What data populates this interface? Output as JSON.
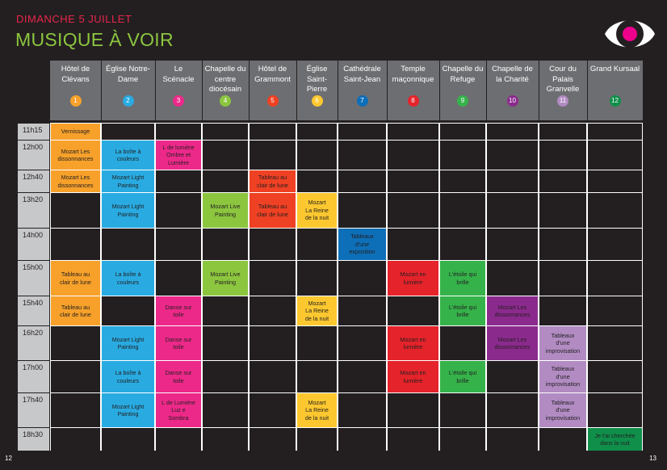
{
  "header": {
    "date": "DIMANCHE 5 JUILLET",
    "title": "MUSIQUE À VOIR"
  },
  "page_numbers": {
    "left": "12",
    "right": "13"
  },
  "colors": {
    "background": "#231f20",
    "date": "#e8254b",
    "title": "#8cc63f",
    "header_bg": "#6d6e71",
    "time_bg": "#c7c8ca",
    "eye_pupil": "#ec008c"
  },
  "logo": {
    "icon": "eye-icon"
  },
  "venues": [
    {
      "label": "Hôtel de Clévans",
      "number": "1",
      "color": "#f7a12b"
    },
    {
      "label": "Église Notre-Dame",
      "number": "2",
      "color": "#29abe2"
    },
    {
      "label": "Le Scénacle",
      "number": "3",
      "color": "#ec2989"
    },
    {
      "label": "Chapelle du centre diocésain",
      "number": "4",
      "color": "#8cc63f"
    },
    {
      "label": "Hôtel de Grammont",
      "number": "5",
      "color": "#ef4123"
    },
    {
      "label": "Église Saint-Pierre",
      "number": "6",
      "color": "#fdc82f"
    },
    {
      "label": "Cathédrale Saint-Jean",
      "number": "7",
      "color": "#0d6fb8"
    },
    {
      "label": "Temple maçonnique",
      "number": "8",
      "color": "#e5232a"
    },
    {
      "label": "Chapelle du Refuge",
      "number": "9",
      "color": "#35b34a"
    },
    {
      "label": "Chapelle de la Charité",
      "number": "10",
      "color": "#8b2a8d"
    },
    {
      "label": "Cour du Palais Granvelle",
      "number": "11",
      "color": "#b18bc2"
    },
    {
      "label": "Grand Kursaal",
      "number": "12",
      "color": "#0f8f4a"
    }
  ],
  "times": [
    "11h15",
    "12h00",
    "12h40",
    "13h20",
    "14h00",
    "15h00",
    "15h40",
    "16h20",
    "17h00",
    "17h40",
    "18h30"
  ],
  "events": [
    {
      "row": 0,
      "col": 0,
      "lines": [
        "Vernissage"
      ]
    },
    {
      "row": 1,
      "col": 0,
      "lines": [
        "Mozart Les",
        "dissonnances"
      ]
    },
    {
      "row": 1,
      "col": 1,
      "lines": [
        "La boîte à",
        "couleurs"
      ]
    },
    {
      "row": 1,
      "col": 2,
      "lines": [
        "L de lumière",
        "Ombre et",
        "Lumière"
      ]
    },
    {
      "row": 2,
      "col": 0,
      "lines": [
        "Mozart Les",
        "dissonnances"
      ]
    },
    {
      "row": 2,
      "col": 1,
      "lines": [
        "Mozart Light",
        "Painting"
      ]
    },
    {
      "row": 2,
      "col": 4,
      "lines": [
        "Tableau au",
        "clair de lune"
      ]
    },
    {
      "row": 3,
      "col": 1,
      "lines": [
        "Mozart Light",
        "Painting"
      ]
    },
    {
      "row": 3,
      "col": 3,
      "lines": [
        "Mozart Live",
        "Painting"
      ]
    },
    {
      "row": 3,
      "col": 4,
      "lines": [
        "Tableau au",
        "clair de lune"
      ]
    },
    {
      "row": 3,
      "col": 5,
      "lines": [
        "Mozart",
        "La Reine",
        "de la nuit"
      ]
    },
    {
      "row": 4,
      "col": 6,
      "lines": [
        "Tableaux",
        "d'une",
        "exposition"
      ]
    },
    {
      "row": 5,
      "col": 0,
      "lines": [
        "Tableau au",
        "clair de lune"
      ]
    },
    {
      "row": 5,
      "col": 1,
      "lines": [
        "La boîte à",
        "couleurs"
      ]
    },
    {
      "row": 5,
      "col": 3,
      "lines": [
        "Mozart Live",
        "Painting"
      ]
    },
    {
      "row": 5,
      "col": 7,
      "lines": [
        "Mozart en",
        "lumière"
      ]
    },
    {
      "row": 5,
      "col": 8,
      "lines": [
        "L'étoile qui",
        "brille"
      ]
    },
    {
      "row": 6,
      "col": 0,
      "lines": [
        "Tableau au",
        "clair de lune"
      ]
    },
    {
      "row": 6,
      "col": 2,
      "lines": [
        "Danse sur",
        "toile"
      ]
    },
    {
      "row": 6,
      "col": 5,
      "lines": [
        "Mozart",
        "La Reine",
        "de la nuit"
      ]
    },
    {
      "row": 6,
      "col": 8,
      "lines": [
        "L'étoile qui",
        "brille"
      ]
    },
    {
      "row": 6,
      "col": 9,
      "lines": [
        "Mozart Les",
        "dissonnances"
      ]
    },
    {
      "row": 7,
      "col": 1,
      "lines": [
        "Mozart Light",
        "Painting"
      ]
    },
    {
      "row": 7,
      "col": 2,
      "lines": [
        "Danse sur",
        "toile"
      ]
    },
    {
      "row": 7,
      "col": 7,
      "lines": [
        "Mozart en",
        "lumière"
      ]
    },
    {
      "row": 7,
      "col": 9,
      "lines": [
        "Mozart Les",
        "dissonnances"
      ]
    },
    {
      "row": 7,
      "col": 10,
      "lines": [
        "Tableaux",
        "d'une",
        "improvisation"
      ]
    },
    {
      "row": 8,
      "col": 1,
      "lines": [
        "La boîte à",
        "couleurs"
      ]
    },
    {
      "row": 8,
      "col": 2,
      "lines": [
        "Danse sur",
        "toile"
      ]
    },
    {
      "row": 8,
      "col": 7,
      "lines": [
        "Mozart en",
        "lumière"
      ]
    },
    {
      "row": 8,
      "col": 8,
      "lines": [
        "L'étoile qui",
        "brille"
      ]
    },
    {
      "row": 8,
      "col": 10,
      "lines": [
        "Tableaux",
        "d'une",
        "improvisation"
      ]
    },
    {
      "row": 9,
      "col": 1,
      "lines": [
        "Mozart Light",
        "Painting"
      ]
    },
    {
      "row": 9,
      "col": 2,
      "lines": [
        "L de Lumière",
        "Luz e",
        "Sombra"
      ]
    },
    {
      "row": 9,
      "col": 5,
      "lines": [
        "Mozart",
        "La Reine",
        "de la nuit"
      ]
    },
    {
      "row": 9,
      "col": 10,
      "lines": [
        "Tableaux",
        "d'une",
        "improvisation"
      ]
    },
    {
      "row": 10,
      "col": 11,
      "lines": [
        "Je t'ai cherchée",
        "dans la nuit"
      ]
    }
  ]
}
